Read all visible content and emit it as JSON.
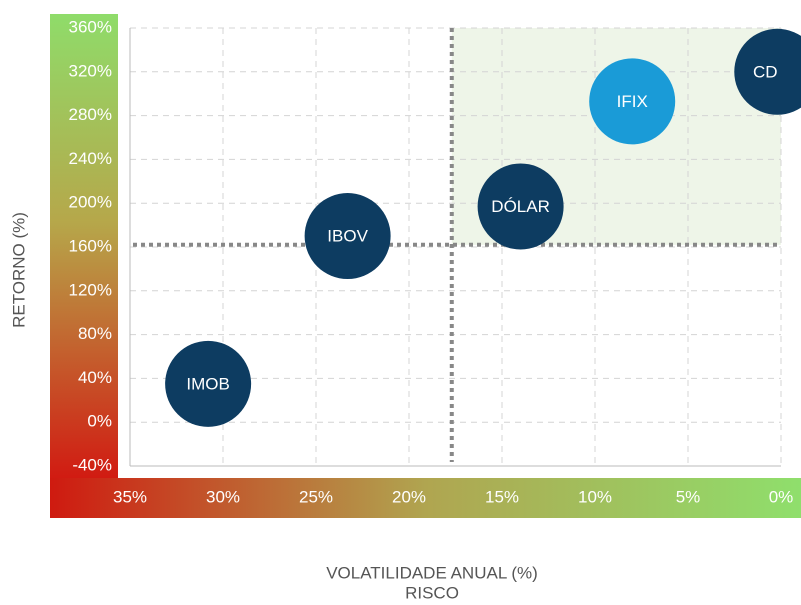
{
  "chart_data": {
    "type": "scatter",
    "xlabel_lines": [
      "VOLATILIDADE ANUAL (%)",
      "RISCO"
    ],
    "ylabel": "RETORNO (%)",
    "series": [
      {
        "name": "IMOB",
        "color": "#0d3c61",
        "x": [
          30.8
        ],
        "values": [
          35
        ]
      },
      {
        "name": "IBOV",
        "color": "#0d3c61",
        "x": [
          23.3
        ],
        "values": [
          170
        ]
      },
      {
        "name": "DÓLAR",
        "color": "#0d3c61",
        "x": [
          14.0
        ],
        "values": [
          197
        ]
      },
      {
        "name": "IFIX",
        "color": "#1a9bd7",
        "x": [
          8.0
        ],
        "values": [
          293
        ]
      },
      {
        "name": "CD",
        "color": "#0d3c61",
        "x": [
          0.2
        ],
        "values": [
          320
        ]
      }
    ],
    "reference_x": 17.7,
    "reference_y": 162,
    "xlim": [
      35,
      0
    ],
    "xticks": [
      {
        "value": 35,
        "label": "35%"
      },
      {
        "value": 30,
        "label": "30%"
      },
      {
        "value": 25,
        "label": "25%"
      },
      {
        "value": 20,
        "label": "20%"
      },
      {
        "value": 15,
        "label": "15%"
      },
      {
        "value": 10,
        "label": "10%"
      },
      {
        "value": 5,
        "label": "5%"
      },
      {
        "value": 0,
        "label": "0%"
      }
    ],
    "ylim": [
      -40,
      360
    ],
    "yticks": [
      {
        "value": -40,
        "label": "-40%"
      },
      {
        "value": 0,
        "label": "0%"
      },
      {
        "value": 40,
        "label": "40%"
      },
      {
        "value": 80,
        "label": "80%"
      },
      {
        "value": 120,
        "label": "120%"
      },
      {
        "value": 160,
        "label": "160%"
      },
      {
        "value": 200,
        "label": "200%"
      },
      {
        "value": 240,
        "label": "240%"
      },
      {
        "value": 280,
        "label": "280%"
      },
      {
        "value": 320,
        "label": "320%"
      },
      {
        "value": 360,
        "label": "360%"
      }
    ],
    "grid": true
  }
}
